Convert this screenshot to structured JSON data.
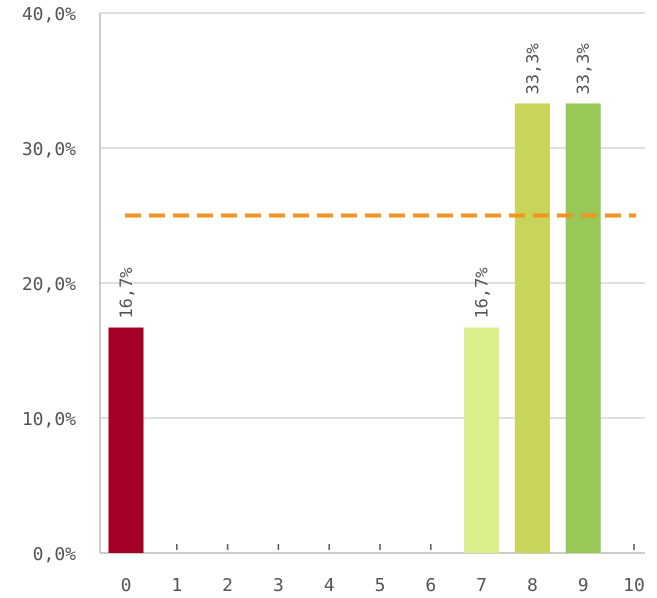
{
  "chart_data": {
    "type": "bar",
    "categories": [
      "0",
      "1",
      "2",
      "3",
      "4",
      "5",
      "6",
      "7",
      "8",
      "9",
      "10"
    ],
    "values": [
      16.7,
      0,
      0,
      0,
      0,
      0,
      0,
      16.7,
      33.3,
      33.3,
      0
    ],
    "value_labels": [
      "16,7%",
      "",
      "",
      "",
      "",
      "",
      "",
      "16,7%",
      "33,3%",
      "33,3%",
      ""
    ],
    "bar_colors": [
      "#a50026",
      "",
      "",
      "",
      "",
      "",
      "",
      "#d9ef8b",
      "#c8d45a",
      "#99c857",
      ""
    ],
    "y_ticks": [
      0,
      10,
      20,
      30,
      40
    ],
    "y_tick_labels": [
      "0,0%",
      "10,0%",
      "20,0%",
      "30,0%",
      "40,0%"
    ],
    "ylim": [
      0,
      40
    ],
    "reference_line": {
      "value": 25,
      "color": "#f39422",
      "style": "dashed"
    },
    "grid": true,
    "gridline_color": "#cccccc",
    "axis_color": "#bbbbbb"
  }
}
